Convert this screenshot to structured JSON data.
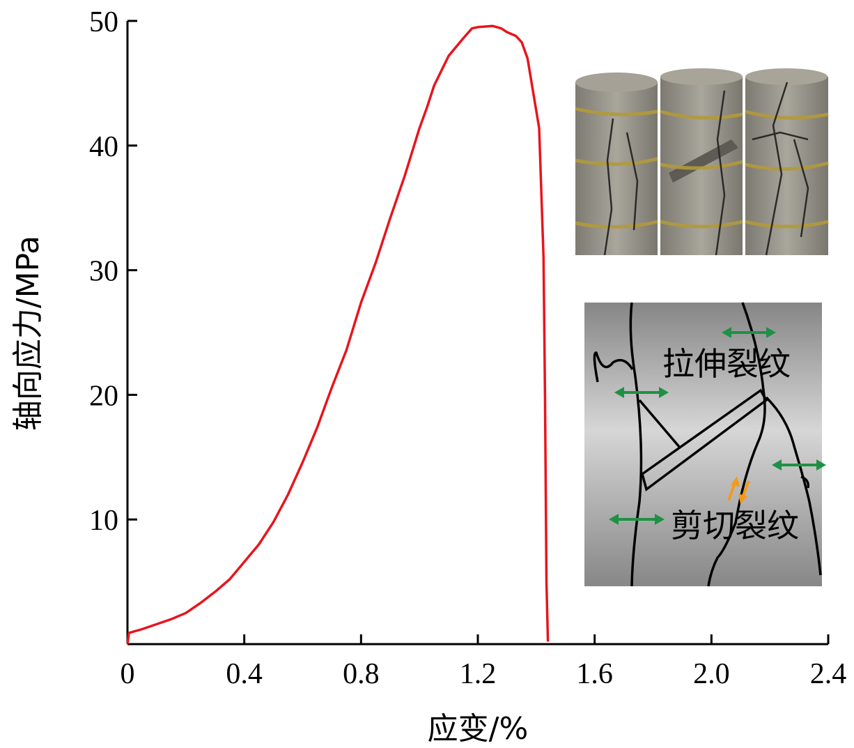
{
  "chart_data": {
    "type": "line",
    "title": "",
    "xlabel": "应变/%",
    "ylabel": "轴向应力/MPa",
    "xlim": [
      0,
      2.4
    ],
    "ylim": [
      0,
      50
    ],
    "x_ticks": [
      0,
      0.4,
      0.8,
      1.2,
      1.6,
      2.0,
      2.4
    ],
    "x_tick_labels": [
      "0",
      "0.4",
      "0.8",
      "1.2",
      "1.6",
      "2.0",
      "2.4"
    ],
    "y_ticks": [
      10,
      20,
      30,
      40,
      50
    ],
    "y_tick_labels": [
      "10",
      "20",
      "30",
      "40",
      "50"
    ],
    "grid": false,
    "line_color": "#e8141c",
    "series": [
      {
        "name": "stress-strain",
        "x": [
          0,
          0.005,
          0.05,
          0.1,
          0.15,
          0.2,
          0.25,
          0.3,
          0.35,
          0.4,
          0.45,
          0.5,
          0.55,
          0.6,
          0.65,
          0.7,
          0.75,
          0.8,
          0.85,
          0.9,
          0.95,
          1.0,
          1.025,
          1.05,
          1.1,
          1.15,
          1.18,
          1.2,
          1.25,
          1.28,
          1.3,
          1.33,
          1.35,
          1.37,
          1.41,
          1.425,
          1.43,
          1.435,
          1.44
        ],
        "y": [
          0,
          0.9,
          1.2,
          1.6,
          2.0,
          2.5,
          3.3,
          4.2,
          5.2,
          6.6,
          8.0,
          9.8,
          12.0,
          14.6,
          17.4,
          20.6,
          23.6,
          27.4,
          30.6,
          34.2,
          37.6,
          41.4,
          43.0,
          44.8,
          47.2,
          48.6,
          49.4,
          49.5,
          49.6,
          49.4,
          49.1,
          48.8,
          48.3,
          47.0,
          41.4,
          31.0,
          20.0,
          5.0,
          0.2
        ]
      }
    ],
    "annotations": {
      "tension_crack": "拉伸裂纹",
      "shear_crack": "剪切裂纹"
    },
    "colors": {
      "tension_arrow": "#1e9145",
      "shear_arrow": "#f39a1c"
    }
  }
}
